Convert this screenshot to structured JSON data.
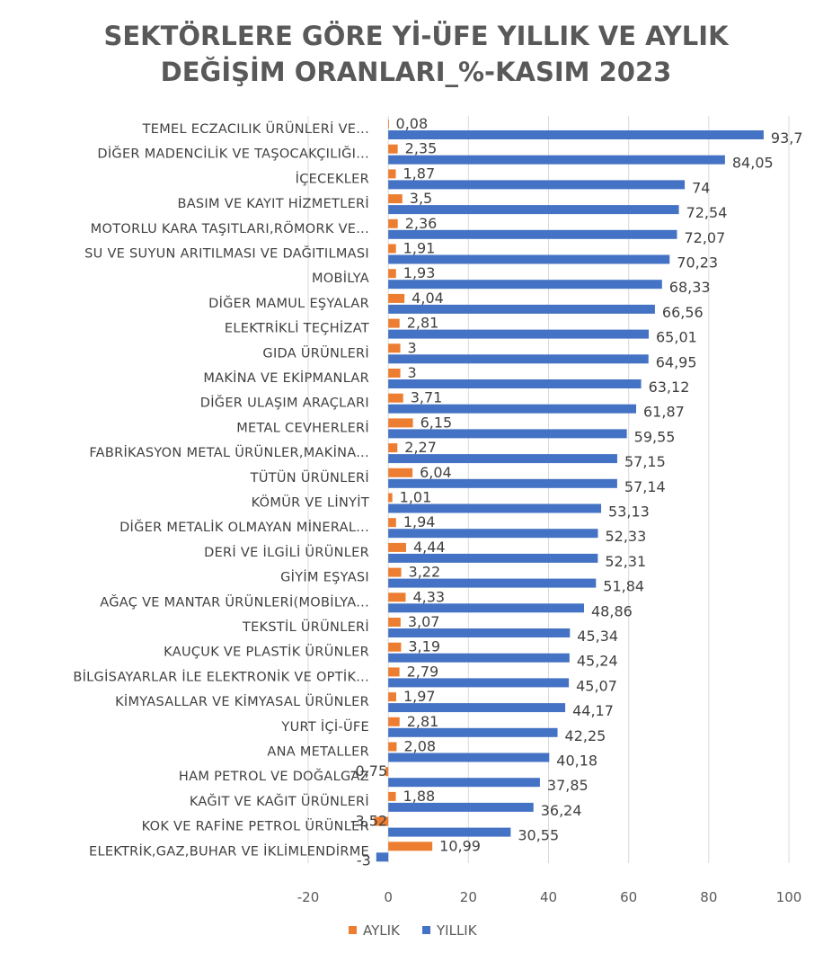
{
  "chart_data": {
    "type": "bar",
    "orientation": "horizontal",
    "title_lines": [
      "SEKTÖRLERE GÖRE Yİ-ÜFE YILLIK VE AYLIK",
      "DEĞİŞİM ORANLARI_%-KASIM 2023"
    ],
    "categories": [
      "TEMEL ECZACILIK ÜRÜNLERİ VE...",
      "DİĞER MADENCİLİK VE TAŞOCAKÇILIĞI...",
      "İÇECEKLER",
      "BASIM VE KAYIT HİZMETLERİ",
      "MOTORLU KARA TAŞITLARI,RÖMORK VE...",
      "SU VE SUYUN ARITILMASI VE DAĞITILMASI",
      "MOBİLYA",
      "DİĞER MAMUL EŞYALAR",
      "ELEKTRİKLİ TEÇHİZAT",
      "GIDA ÜRÜNLERİ",
      "MAKİNA VE EKİPMANLAR",
      "DİĞER ULAŞIM ARAÇLARI",
      "METAL CEVHERLERİ",
      "FABRİKASYON METAL ÜRÜNLER,MAKİNA...",
      "TÜTÜN ÜRÜNLERİ",
      "KÖMÜR VE LİNYİT",
      "DİĞER METALİK OLMAYAN MİNERAL...",
      "DERİ VE İLGİLİ ÜRÜNLER",
      "GİYİM EŞYASI",
      "AĞAÇ VE MANTAR ÜRÜNLERİ(MOBİLYA...",
      "TEKSTİL ÜRÜNLERİ",
      "KAUÇUK VE PLASTİK ÜRÜNLER",
      "BİLGİSAYARLAR İLE ELEKTRONİK VE OPTİK...",
      "KİMYASALLAR VE KİMYASAL ÜRÜNLER",
      "YURT İÇİ-ÜFE",
      "ANA METALLER",
      "HAM PETROL VE DOĞALGAZ",
      "KAĞIT VE KAĞIT ÜRÜNLERİ",
      "KOK VE RAFİNE PETROL ÜRÜNLER",
      "ELEKTRİK,GAZ,BUHAR VE İKLİMLENDİRME"
    ],
    "series": [
      {
        "name": "AYLIK",
        "color": "#ED7D31",
        "values": [
          0.08,
          2.35,
          1.87,
          3.5,
          2.36,
          1.91,
          1.93,
          4.04,
          2.81,
          3,
          3,
          3.71,
          6.15,
          2.27,
          6.04,
          1.01,
          1.94,
          4.44,
          3.22,
          4.33,
          3.07,
          3.19,
          2.79,
          1.97,
          2.81,
          2.08,
          -0.75,
          1.88,
          -3.52,
          10.99
        ],
        "labels": [
          "0,08",
          "2,35",
          "1,87",
          "3,5",
          "2,36",
          "1,91",
          "1,93",
          "4,04",
          "2,81",
          "3",
          "3",
          "3,71",
          "6,15",
          "2,27",
          "6,04",
          "1,01",
          "1,94",
          "4,44",
          "3,22",
          "4,33",
          "3,07",
          "3,19",
          "2,79",
          "1,97",
          "2,81",
          "2,08",
          "-0,75",
          "1,88",
          "-3,52",
          "10,99"
        ]
      },
      {
        "name": "YILLIK",
        "color": "#4472C4",
        "values": [
          93.7,
          84.05,
          74,
          72.54,
          72.07,
          70.23,
          68.33,
          66.56,
          65.01,
          64.95,
          63.12,
          61.87,
          59.55,
          57.15,
          57.14,
          53.13,
          52.33,
          52.31,
          51.84,
          48.86,
          45.34,
          45.24,
          45.07,
          44.17,
          42.25,
          40.18,
          37.85,
          36.24,
          30.55,
          -3
        ],
        "labels": [
          "93,7",
          "84,05",
          "74",
          "72,54",
          "72,07",
          "70,23",
          "68,33",
          "66,56",
          "65,01",
          "64,95",
          "63,12",
          "61,87",
          "59,55",
          "57,15",
          "57,14",
          "53,13",
          "52,33",
          "52,31",
          "51,84",
          "48,86",
          "45,34",
          "45,24",
          "45,07",
          "44,17",
          "42,25",
          "40,18",
          "37,85",
          "36,24",
          "30,55",
          "-3"
        ]
      }
    ],
    "xlim": [
      -20,
      100
    ],
    "xticks": [
      -20,
      0,
      20,
      40,
      60,
      80,
      100
    ],
    "xtick_labels": [
      "-20",
      "0",
      "20",
      "40",
      "60",
      "80",
      "100"
    ],
    "gridlines": "vertical",
    "legend_position": "bottom"
  }
}
